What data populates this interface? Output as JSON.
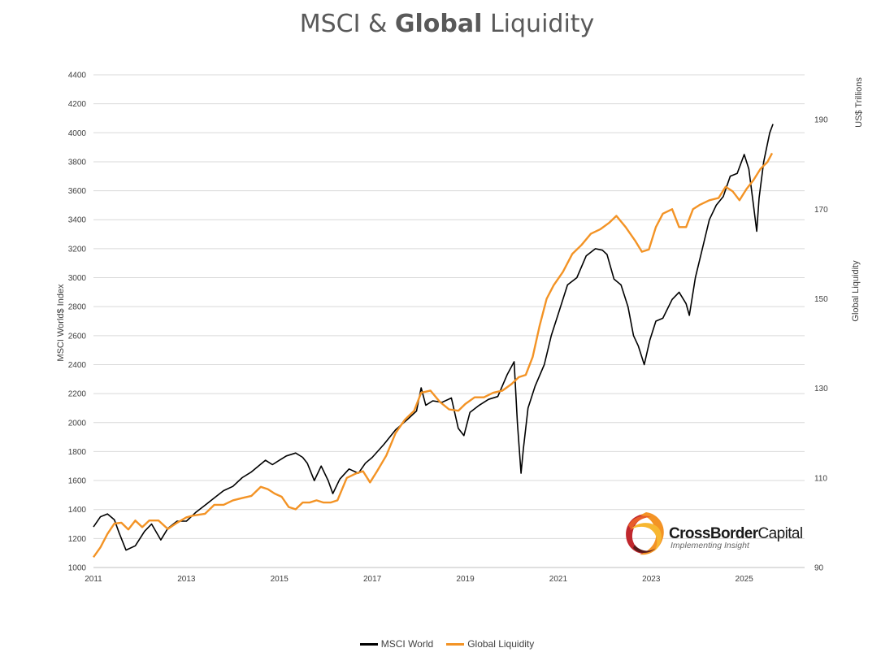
{
  "title": {
    "prefix": "MSCI & ",
    "bold": "Global",
    "suffix": " Liquidity"
  },
  "logo": {
    "name_bold": "CrossBorder",
    "name_regular": "Capital",
    "tagline": "Implementing Insight"
  },
  "chart_data": {
    "type": "line",
    "title": "MSCI & Global Liquidity",
    "xlabel": "",
    "x_ticks": [
      "2011",
      "2013",
      "2015",
      "2017",
      "2019",
      "2021",
      "2023",
      "2025"
    ],
    "xlim": [
      2011,
      2026.3
    ],
    "y_left": {
      "label": "MSCI World$ Index",
      "ylim": [
        1000,
        4400
      ],
      "ticks": [
        1000,
        1200,
        1400,
        1600,
        1800,
        2000,
        2200,
        2400,
        2600,
        2800,
        3000,
        3200,
        3400,
        3600,
        3800,
        4000,
        4200,
        4400
      ]
    },
    "y_right": {
      "label": "Global Liquidity",
      "unit_label": "US$ Trillions",
      "ylim": [
        90,
        200
      ],
      "ticks": [
        90,
        110,
        130,
        150,
        170,
        190
      ]
    },
    "grid": true,
    "legend_position": "bottom",
    "series": [
      {
        "name": "MSCI World",
        "axis": "left",
        "color": "#000000",
        "x": [
          2011.0,
          2011.15,
          2011.3,
          2011.45,
          2011.55,
          2011.7,
          2011.9,
          2012.1,
          2012.25,
          2012.45,
          2012.6,
          2012.8,
          2013.0,
          2013.2,
          2013.4,
          2013.6,
          2013.8,
          2014.0,
          2014.2,
          2014.4,
          2014.55,
          2014.7,
          2014.85,
          2015.0,
          2015.15,
          2015.35,
          2015.5,
          2015.6,
          2015.75,
          2015.9,
          2016.05,
          2016.15,
          2016.3,
          2016.5,
          2016.7,
          2016.85,
          2017.0,
          2017.25,
          2017.5,
          2017.75,
          2017.95,
          2018.05,
          2018.15,
          2018.3,
          2018.5,
          2018.7,
          2018.85,
          2018.97,
          2019.1,
          2019.3,
          2019.5,
          2019.7,
          2019.9,
          2020.05,
          2020.12,
          2020.2,
          2020.25,
          2020.35,
          2020.5,
          2020.7,
          2020.85,
          2021.0,
          2021.2,
          2021.4,
          2021.6,
          2021.8,
          2021.95,
          2022.05,
          2022.2,
          2022.35,
          2022.5,
          2022.62,
          2022.72,
          2022.85,
          2022.97,
          2023.1,
          2023.25,
          2023.45,
          2023.6,
          2023.75,
          2023.82,
          2023.95,
          2024.1,
          2024.25,
          2024.4,
          2024.55,
          2024.7,
          2024.85,
          2025.0,
          2025.1,
          2025.2,
          2025.27,
          2025.32,
          2025.42,
          2025.55,
          2025.62
        ],
        "values": [
          1280,
          1350,
          1370,
          1330,
          1240,
          1120,
          1150,
          1250,
          1300,
          1190,
          1270,
          1320,
          1320,
          1380,
          1430,
          1480,
          1530,
          1560,
          1620,
          1660,
          1700,
          1740,
          1710,
          1740,
          1770,
          1790,
          1760,
          1720,
          1600,
          1700,
          1600,
          1510,
          1610,
          1680,
          1650,
          1720,
          1760,
          1850,
          1950,
          2020,
          2080,
          2240,
          2120,
          2150,
          2140,
          2170,
          1960,
          1910,
          2070,
          2120,
          2160,
          2180,
          2330,
          2420,
          2000,
          1650,
          1820,
          2100,
          2250,
          2400,
          2600,
          2750,
          2950,
          3000,
          3150,
          3200,
          3190,
          3160,
          2990,
          2950,
          2800,
          2600,
          2530,
          2400,
          2570,
          2700,
          2720,
          2850,
          2900,
          2820,
          2740,
          3000,
          3200,
          3400,
          3500,
          3560,
          3700,
          3720,
          3850,
          3750,
          3500,
          3320,
          3550,
          3800,
          4000,
          4060
        ]
      },
      {
        "name": "Global Liquidity",
        "axis": "right",
        "color": "#f39325",
        "x": [
          2011.0,
          2011.15,
          2011.3,
          2011.45,
          2011.6,
          2011.75,
          2011.9,
          2012.05,
          2012.2,
          2012.4,
          2012.6,
          2012.8,
          2013.0,
          2013.15,
          2013.4,
          2013.6,
          2013.8,
          2014.0,
          2014.2,
          2014.4,
          2014.6,
          2014.75,
          2014.9,
          2015.05,
          2015.2,
          2015.35,
          2015.5,
          2015.65,
          2015.8,
          2015.95,
          2016.1,
          2016.25,
          2016.45,
          2016.65,
          2016.8,
          2016.95,
          2017.1,
          2017.3,
          2017.5,
          2017.7,
          2017.9,
          2018.05,
          2018.25,
          2018.45,
          2018.65,
          2018.85,
          2019.0,
          2019.2,
          2019.4,
          2019.6,
          2019.8,
          2020.0,
          2020.15,
          2020.3,
          2020.45,
          2020.6,
          2020.75,
          2020.9,
          2021.1,
          2021.3,
          2021.5,
          2021.7,
          2021.9,
          2022.1,
          2022.25,
          2022.45,
          2022.65,
          2022.8,
          2022.95,
          2023.1,
          2023.25,
          2023.45,
          2023.6,
          2023.75,
          2023.9,
          2024.05,
          2024.25,
          2024.45,
          2024.6,
          2024.75,
          2024.9,
          2025.05,
          2025.2,
          2025.35,
          2025.5,
          2025.6
        ],
        "values": [
          92.3,
          94.5,
          97.5,
          99.8,
          100.0,
          98.5,
          100.5,
          99.0,
          100.5,
          100.5,
          98.6,
          100.0,
          101.2,
          101.6,
          102.0,
          104.0,
          104.0,
          105.0,
          105.5,
          106.0,
          108.0,
          107.5,
          106.5,
          105.8,
          103.5,
          103.0,
          104.5,
          104.5,
          105.0,
          104.5,
          104.5,
          105.0,
          110.0,
          111.0,
          111.5,
          109.0,
          111.5,
          115.0,
          120.0,
          123.0,
          125.0,
          129.0,
          129.5,
          127.0,
          125.3,
          125.0,
          126.5,
          128.0,
          128.0,
          129.0,
          129.5,
          131.0,
          132.5,
          133.0,
          137.0,
          144.0,
          150.0,
          153.0,
          156.0,
          160.0,
          162.0,
          164.5,
          165.5,
          167.0,
          168.5,
          166.0,
          163.0,
          160.5,
          161.0,
          166.0,
          169.0,
          170.0,
          166.0,
          166.0,
          170.0,
          171.0,
          172.0,
          172.5,
          175.0,
          174.0,
          172.0,
          174.5,
          176.5,
          179.0,
          180.5,
          182.5
        ]
      }
    ]
  }
}
